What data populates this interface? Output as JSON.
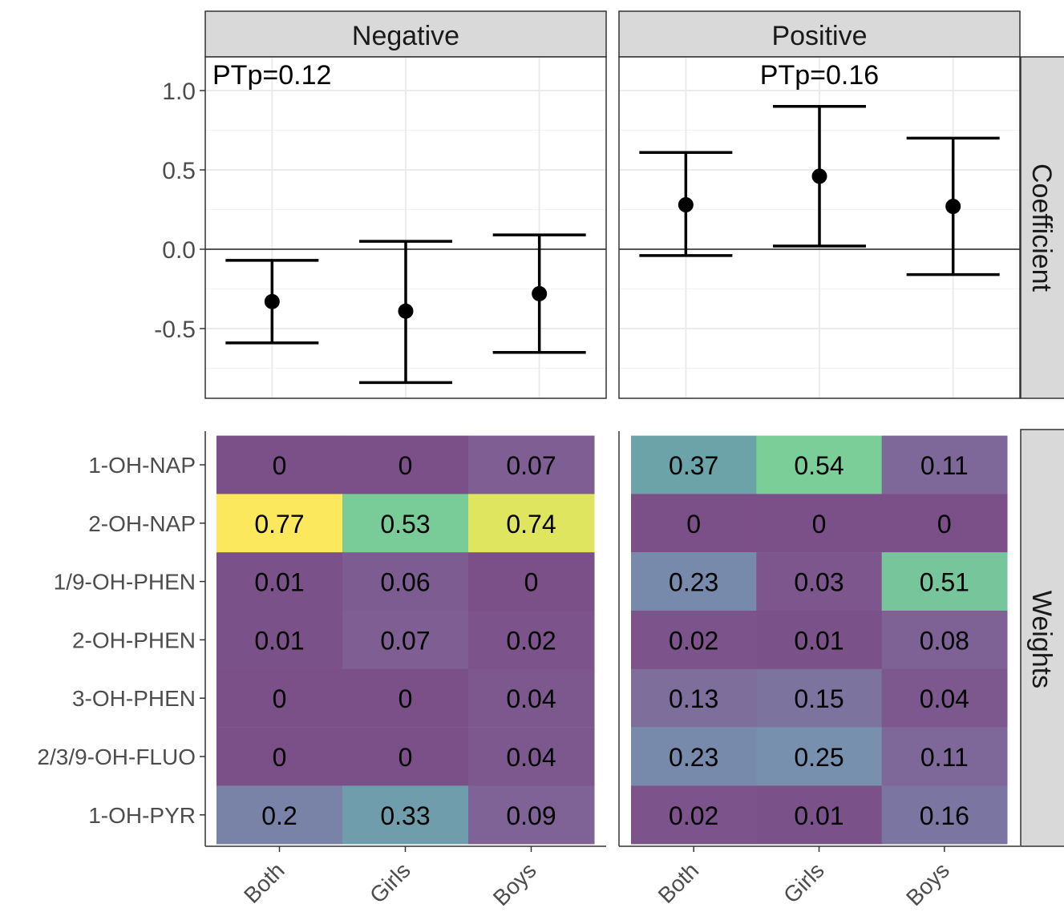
{
  "chart_data": [
    {
      "type": "scatter",
      "subtype": "point-errorbar",
      "facet_row_label": "Coefficient",
      "facet_columns": [
        "Negative",
        "Positive"
      ],
      "categories": [
        "Both",
        "Girls",
        "Boys"
      ],
      "ylim": [
        -0.92,
        1.2
      ],
      "yticks": [
        1.0,
        0.5,
        0.0,
        -0.5
      ],
      "ytick_labels": [
        "1.0",
        "0.5",
        "0.0",
        "-0.5"
      ],
      "reference_line_y": 0,
      "grid": true,
      "panels": [
        {
          "name": "Negative",
          "annotation": "PTp=0.12",
          "points": [
            {
              "category": "Both",
              "estimate": -0.33,
              "lower": -0.59,
              "upper": -0.07
            },
            {
              "category": "Girls",
              "estimate": -0.39,
              "lower": -0.84,
              "upper": 0.05
            },
            {
              "category": "Boys",
              "estimate": -0.28,
              "lower": -0.65,
              "upper": 0.09
            }
          ]
        },
        {
          "name": "Positive",
          "annotation": "PTp=0.16",
          "points": [
            {
              "category": "Both",
              "estimate": 0.28,
              "lower": -0.04,
              "upper": 0.61
            },
            {
              "category": "Girls",
              "estimate": 0.46,
              "lower": 0.02,
              "upper": 0.9
            },
            {
              "category": "Boys",
              "estimate": 0.27,
              "lower": -0.16,
              "upper": 0.7
            }
          ]
        }
      ]
    },
    {
      "type": "heatmap",
      "facet_row_label": "Weights",
      "facet_columns": [
        "Negative",
        "Positive"
      ],
      "rows": [
        "1-OH-NAP",
        "2-OH-NAP",
        "1/9-OH-PHEN",
        "2-OH-PHEN",
        "3-OH-PHEN",
        "2/3/9-OH-FLUO",
        "1-OH-PYR"
      ],
      "columns": [
        "Both",
        "Girls",
        "Boys"
      ],
      "color_scale": "viridis",
      "color_range": [
        0,
        0.77
      ],
      "panels": [
        {
          "name": "Negative",
          "values": [
            [
              0,
              0,
              0.07
            ],
            [
              0.77,
              0.53,
              0.74
            ],
            [
              0.01,
              0.06,
              0
            ],
            [
              0.01,
              0.07,
              0.02
            ],
            [
              0,
              0,
              0.04
            ],
            [
              0,
              0,
              0.04
            ],
            [
              0.2,
              0.33,
              0.09
            ]
          ]
        },
        {
          "name": "Positive",
          "values": [
            [
              0.37,
              0.54,
              0.11
            ],
            [
              0,
              0,
              0
            ],
            [
              0.23,
              0.03,
              0.51
            ],
            [
              0.02,
              0.01,
              0.08
            ],
            [
              0.13,
              0.15,
              0.04
            ],
            [
              0.23,
              0.25,
              0.11
            ],
            [
              0.02,
              0.01,
              0.16
            ]
          ]
        }
      ]
    }
  ]
}
